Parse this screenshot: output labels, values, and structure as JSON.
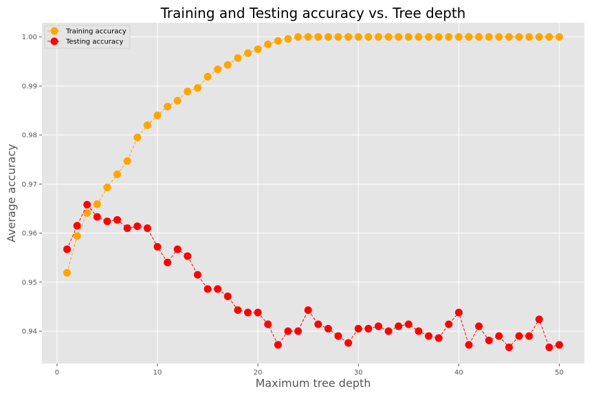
{
  "chart_data": {
    "type": "line",
    "title": "Training and Testing accuracy vs. Tree depth",
    "xlabel": "Maximum tree depth",
    "ylabel": "Average accuracy",
    "xlim": [
      -1.5,
      52.5
    ],
    "ylim": [
      0.9334,
      1.0029
    ],
    "xticks": [
      0,
      10,
      20,
      30,
      40,
      50
    ],
    "yticks": [
      0.94,
      0.95,
      0.96,
      0.97,
      0.98,
      0.99,
      1.0
    ],
    "ytick_labels": [
      "0.94",
      "0.95",
      "0.96",
      "0.97",
      "0.98",
      "0.99",
      "1.00"
    ],
    "grid": true,
    "legend_position": "top-left",
    "background": "#e5e5e5",
    "grid_color": "#ffffff",
    "x": [
      1,
      2,
      3,
      4,
      5,
      6,
      7,
      8,
      9,
      10,
      11,
      12,
      13,
      14,
      15,
      16,
      17,
      18,
      19,
      20,
      21,
      22,
      23,
      24,
      25,
      26,
      27,
      28,
      29,
      30,
      31,
      32,
      33,
      34,
      35,
      36,
      37,
      38,
      39,
      40,
      41,
      42,
      43,
      44,
      45,
      46,
      47,
      48,
      49,
      50
    ],
    "series": [
      {
        "name": "Training accuracy",
        "color": "#ffa500",
        "line_style": "dashed",
        "marker": "circle",
        "values": [
          0.9519,
          0.9594,
          0.9641,
          0.9659,
          0.9693,
          0.972,
          0.9747,
          0.9795,
          0.982,
          0.984,
          0.9858,
          0.987,
          0.9889,
          0.9896,
          0.9919,
          0.9934,
          0.9943,
          0.9957,
          0.9967,
          0.9975,
          0.9985,
          0.9992,
          0.9996,
          1.0,
          1.0,
          1.0,
          1.0,
          1.0,
          1.0,
          1.0,
          1.0,
          1.0,
          1.0,
          1.0,
          1.0,
          1.0,
          1.0,
          1.0,
          1.0,
          1.0,
          1.0,
          1.0,
          1.0,
          1.0,
          1.0,
          1.0,
          1.0,
          1.0,
          1.0,
          1.0
        ]
      },
      {
        "name": "Testing accuracy",
        "color": "#ff0000",
        "line_style": "dashed",
        "marker": "circle",
        "values": [
          0.9567,
          0.9615,
          0.9658,
          0.9633,
          0.9624,
          0.9627,
          0.961,
          0.9614,
          0.961,
          0.9572,
          0.954,
          0.9567,
          0.9553,
          0.9515,
          0.9486,
          0.9486,
          0.9471,
          0.9443,
          0.9438,
          0.9438,
          0.9414,
          0.9372,
          0.94,
          0.94,
          0.9443,
          0.9414,
          0.9405,
          0.939,
          0.9376,
          0.9405,
          0.9405,
          0.941,
          0.94,
          0.941,
          0.9414,
          0.94,
          0.939,
          0.9386,
          0.9414,
          0.9438,
          0.9372,
          0.941,
          0.9381,
          0.939,
          0.9367,
          0.939,
          0.939,
          0.9424,
          0.9367,
          0.9372
        ]
      }
    ]
  }
}
